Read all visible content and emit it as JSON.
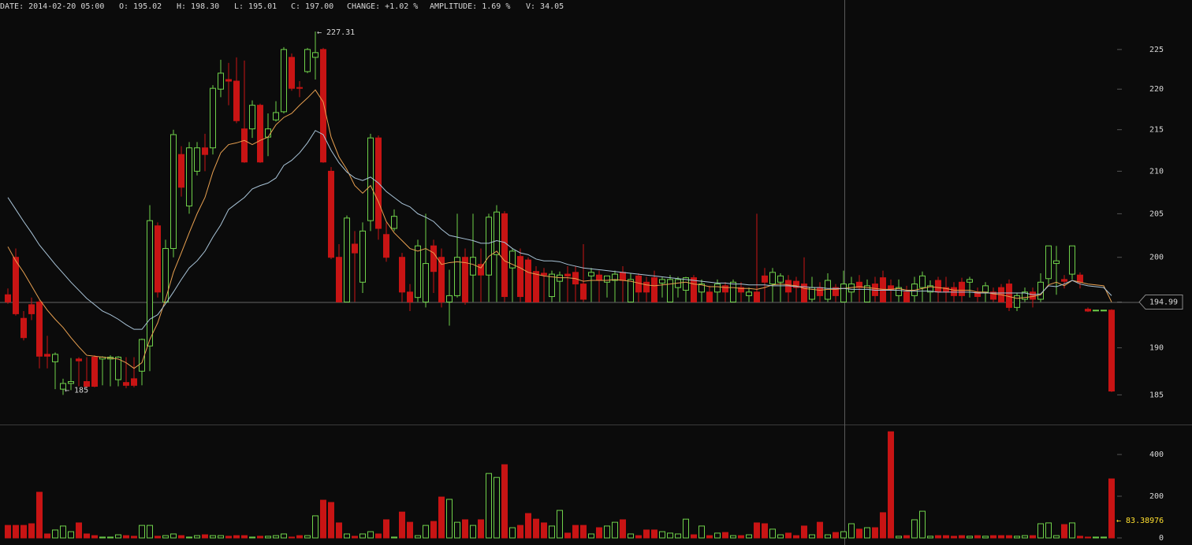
{
  "chart_data": {
    "type": "candlestick",
    "info": [
      "DATE: 2014-02-20 05:00",
      "O: 195.02",
      "H: 198.30",
      "L: 195.01",
      "C: 197.00",
      "CHANGE: +1.02 %",
      "AMPLITUDE: 1.69 %",
      "V: 34.05"
    ],
    "log_scale": true,
    "ylim": [
      182,
      231.4
    ],
    "yticks": [
      185,
      190,
      195,
      200,
      205,
      210,
      215,
      220,
      225
    ],
    "volume_ylim": [
      0,
      540
    ],
    "volume_yticks": [
      0,
      200,
      400
    ],
    "up_color": "#6fd14a",
    "down_color": "#c81414",
    "crosshair_price": 194.99,
    "annotations": [
      {
        "text": "← 227.31",
        "value": 227.31,
        "at": "high"
      },
      {
        "text": "← 185",
        "value": 185,
        "at": "low"
      }
    ],
    "volume_annotation": {
      "text": "← 83.38976",
      "value": 83.38976,
      "color": "#ffe030"
    },
    "ohlc": [
      [
        195.8,
        196.5,
        194.8,
        195.0
      ],
      [
        200,
        201,
        193.5,
        193.7
      ],
      [
        193.2,
        194,
        190.8,
        191.1
      ],
      [
        194.7,
        195.5,
        193,
        193.7
      ],
      [
        195,
        195.2,
        187.8,
        189.1
      ],
      [
        189.3,
        191.3,
        187.8,
        189.1
      ],
      [
        188.5,
        189.5,
        185.6,
        189.3
      ],
      [
        185.6,
        186.7,
        185,
        186.2
      ],
      [
        186.2,
        188.9,
        185.5,
        186.4
      ],
      [
        188.8,
        189,
        185.9,
        188.6
      ],
      [
        186.4,
        189,
        185.7,
        185.9
      ],
      [
        189,
        189.2,
        185.8,
        185.9
      ],
      [
        188.8,
        189.1,
        186,
        189
      ],
      [
        188.8,
        189.2,
        185.9,
        189
      ],
      [
        186.6,
        189.1,
        185.9,
        189
      ],
      [
        186.3,
        189,
        185.7,
        186
      ],
      [
        186.7,
        189,
        185.8,
        186
      ],
      [
        187.5,
        191,
        186,
        190.9
      ],
      [
        190.2,
        206,
        187.5,
        204.2
      ],
      [
        203.6,
        204,
        195.5,
        196.1
      ],
      [
        195,
        202,
        194.8,
        201
      ],
      [
        201,
        215,
        200,
        214.4
      ],
      [
        212,
        213,
        207,
        208.1
      ],
      [
        205.9,
        213.5,
        205,
        212.8
      ],
      [
        210,
        213.5,
        209.5,
        212.8
      ],
      [
        212.8,
        214.5,
        210,
        212
      ],
      [
        212.8,
        220.5,
        212,
        220.1
      ],
      [
        220,
        223.7,
        219,
        222
      ],
      [
        221.2,
        223.3,
        218,
        221
      ],
      [
        221,
        224,
        215.8,
        216.1
      ],
      [
        215.1,
        223.6,
        211,
        211.1
      ],
      [
        215.1,
        218.6,
        214,
        218
      ],
      [
        218,
        218.2,
        211,
        211.1
      ],
      [
        214.1,
        217,
        211.8,
        215.1
      ],
      [
        216.2,
        218.5,
        216,
        217.1
      ],
      [
        217.2,
        225.3,
        217,
        225
      ],
      [
        224,
        224.5,
        219.8,
        220.1
      ],
      [
        220.2,
        221,
        219,
        220.1
      ],
      [
        222.2,
        225.2,
        222,
        225
      ],
      [
        224,
        227.31,
        221.2,
        224.6
      ],
      [
        225,
        225.2,
        211,
        211.1
      ],
      [
        210,
        210.5,
        199.8,
        200
      ],
      [
        200,
        201.5,
        195,
        195
      ],
      [
        195,
        204.8,
        195,
        204.5
      ],
      [
        201.5,
        203,
        195,
        200.5
      ],
      [
        197.2,
        204,
        196,
        203
      ],
      [
        204.2,
        214.5,
        203,
        214
      ],
      [
        214,
        214.3,
        202,
        203.3
      ],
      [
        202.6,
        204,
        199.5,
        200
      ],
      [
        203.3,
        205.5,
        203,
        204.7
      ],
      [
        200,
        200.5,
        195,
        196.1
      ],
      [
        196.1,
        197,
        194,
        195
      ],
      [
        195.5,
        202,
        195,
        201.3
      ],
      [
        195,
        205,
        194.4,
        199.3
      ],
      [
        201.3,
        202,
        196,
        198.4
      ],
      [
        200,
        201,
        194.4,
        195
      ],
      [
        195,
        198.6,
        192.4,
        195.7
      ],
      [
        195.7,
        205,
        195.5,
        200
      ],
      [
        200,
        201,
        194.7,
        195
      ],
      [
        198,
        205,
        195,
        200
      ],
      [
        199.2,
        201,
        195,
        198
      ],
      [
        198,
        205,
        195,
        204.6
      ],
      [
        200.3,
        206,
        195,
        205.2
      ],
      [
        205,
        205.3,
        195,
        195.6
      ],
      [
        198.8,
        201,
        195,
        200.7
      ],
      [
        200.1,
        201,
        195,
        195.6
      ],
      [
        199.7,
        200,
        195,
        195
      ],
      [
        198.4,
        199,
        195,
        195
      ],
      [
        198.2,
        198.8,
        195,
        198
      ],
      [
        195.6,
        198.5,
        195,
        198.1
      ],
      [
        197.3,
        198.4,
        195,
        198
      ],
      [
        198.1,
        199,
        195,
        197.9
      ],
      [
        198.3,
        199,
        195,
        197
      ],
      [
        197,
        201.5,
        195,
        195.3
      ],
      [
        197.9,
        198.8,
        195,
        198.3
      ],
      [
        198,
        198.5,
        195,
        197.4
      ],
      [
        197.2,
        197.8,
        195.5,
        197.9
      ],
      [
        197.4,
        198.5,
        195,
        198.1
      ],
      [
        198.3,
        199,
        195,
        197.4
      ],
      [
        195,
        198.2,
        195,
        197.5
      ],
      [
        197.9,
        198.2,
        195,
        196.1
      ],
      [
        197.2,
        197.8,
        195,
        196.1
      ],
      [
        197.7,
        198.5,
        195,
        195
      ],
      [
        197.1,
        197.8,
        195.5,
        197.5
      ],
      [
        195,
        198,
        195,
        197.5
      ],
      [
        196.6,
        197.8,
        195.5,
        197.5
      ],
      [
        196.3,
        197.8,
        195,
        197.7
      ],
      [
        197.7,
        198,
        195,
        195
      ],
      [
        196.1,
        197.5,
        195,
        197
      ],
      [
        196.1,
        196.8,
        195,
        195
      ],
      [
        196.1,
        197.5,
        195,
        197
      ],
      [
        196.8,
        197.2,
        195,
        196.1
      ],
      [
        195,
        197.5,
        195,
        197.2
      ],
      [
        196.6,
        197.2,
        195,
        196.1
      ],
      [
        195.7,
        196.6,
        195,
        196.1
      ],
      [
        196.1,
        205,
        195,
        195
      ],
      [
        197.9,
        198.8,
        195,
        197.2
      ],
      [
        197,
        198.8,
        195,
        198.3
      ],
      [
        197.2,
        198.2,
        195,
        197.9
      ],
      [
        197.4,
        198,
        195,
        196.1
      ],
      [
        197.3,
        197.8,
        195,
        196.6
      ],
      [
        197,
        200,
        195,
        195
      ],
      [
        195.3,
        197.8,
        195,
        196.6
      ],
      [
        196.6,
        197.2,
        195,
        195.7
      ],
      [
        195.3,
        198.2,
        195,
        197.4
      ],
      [
        196.6,
        197,
        195,
        195.7
      ],
      [
        195,
        198.5,
        195,
        197
      ],
      [
        196.1,
        197.8,
        195,
        197
      ],
      [
        197.2,
        198,
        195,
        196.6
      ],
      [
        195,
        197.5,
        195,
        196.8
      ],
      [
        197,
        197.8,
        195,
        195.7
      ],
      [
        197.7,
        198.5,
        195,
        195
      ],
      [
        196.8,
        197.5,
        195,
        196.4
      ],
      [
        195.7,
        197.5,
        195,
        196.6
      ],
      [
        196.1,
        196.8,
        195,
        195
      ],
      [
        195.7,
        197.8,
        195,
        197
      ],
      [
        196.6,
        198.4,
        195,
        197.9
      ],
      [
        196.1,
        197.4,
        195,
        196.8
      ],
      [
        197.4,
        197.8,
        195,
        196.1
      ],
      [
        196.6,
        197.8,
        195,
        196.1
      ],
      [
        196.6,
        197.2,
        195,
        195.7
      ],
      [
        197.2,
        197.7,
        195,
        195.7
      ],
      [
        197.2,
        197.8,
        195.5,
        197.5
      ],
      [
        196.1,
        196.6,
        195,
        195.6
      ],
      [
        196.1,
        197.2,
        195,
        196.8
      ],
      [
        196.1,
        196.6,
        195,
        195.3
      ],
      [
        196.6,
        197,
        195,
        195
      ],
      [
        197,
        197.5,
        194,
        194.4
      ],
      [
        194.4,
        196,
        194,
        195.7
      ],
      [
        195.3,
        196.6,
        195,
        196.1
      ],
      [
        196.1,
        196.6,
        194.4,
        195.3
      ],
      [
        195.3,
        198.2,
        195,
        197.2
      ],
      [
        197.6,
        201.3,
        197,
        201.3
      ],
      [
        199.3,
        201.3,
        195.8,
        199.6
      ],
      [
        197.5,
        198,
        196.5,
        197.3
      ],
      [
        198.1,
        201.3,
        197.5,
        201.3
      ],
      [
        198,
        198.3,
        196.5,
        197.2
      ],
      [
        194.2,
        194.4,
        193.9,
        194
      ],
      [
        194.1,
        194.1,
        194.1,
        194.1
      ],
      [
        194.1,
        194.1,
        194.1,
        194.1
      ],
      [
        194.1,
        194.2,
        185.3,
        185.4
      ]
    ],
    "volume": [
      60,
      60,
      60,
      68,
      219,
      19,
      38,
      57,
      30,
      72,
      19,
      11,
      4,
      4,
      15,
      11,
      8,
      60,
      60,
      8,
      11,
      19,
      11,
      4,
      11,
      15,
      11,
      11,
      8,
      11,
      11,
      4,
      8,
      8,
      11,
      19,
      4,
      11,
      11,
      106,
      181,
      170,
      72,
      19,
      8,
      19,
      30,
      19,
      87,
      4,
      124,
      75,
      11,
      60,
      79,
      196,
      185,
      75,
      87,
      60,
      87,
      309,
      290,
      351,
      49,
      60,
      117,
      90,
      72,
      57,
      132,
      23,
      60,
      60,
      19,
      49,
      57,
      75,
      87,
      19,
      11,
      38,
      38,
      30,
      23,
      19,
      90,
      15,
      57,
      11,
      23,
      26,
      11,
      11,
      15,
      72,
      68,
      42,
      15,
      23,
      11,
      57,
      15,
      75,
      15,
      26,
      30,
      68,
      42,
      49,
      49,
      121,
      509,
      8,
      11,
      87,
      128,
      8,
      11,
      11,
      8,
      11,
      8,
      11,
      8,
      11,
      11,
      11,
      8,
      11,
      11,
      68,
      72,
      11,
      64,
      72,
      8,
      4,
      4,
      4,
      283
    ],
    "ma": [
      {
        "color": "#e8a050",
        "values": [
          201.2,
          199.6,
          198.3,
          196.8,
          195.3,
          194.1,
          193.1,
          192.2,
          191.1,
          190.1,
          189.2,
          189.1,
          189.0,
          188.9,
          188.8,
          188.4,
          187.8,
          188.4,
          190.9,
          192.7,
          195.3,
          198.3,
          200.5,
          202.8,
          205,
          206.9,
          209.9,
          212.2,
          213.2,
          213.4,
          213.7,
          213.2,
          213.7,
          214.1,
          215.6,
          216.5,
          217,
          218,
          218.9,
          219.9,
          218.4,
          214.1,
          211.7,
          210.2,
          208.3,
          207.4,
          208.3,
          206.4,
          204.1,
          202.8,
          201.9,
          201,
          200.7,
          201,
          200.5,
          199.2,
          199.4,
          199.5,
          199.4,
          199.2,
          198.8,
          200.1,
          200.7,
          199.6,
          199.2,
          198.8,
          198.3,
          198.1,
          197.9,
          197.8,
          197.7,
          197.7,
          197.6,
          197.3,
          197.4,
          197.4,
          197.4,
          197.5,
          197.4,
          197.3,
          197.1,
          196.9,
          196.8,
          196.9,
          197.0,
          197.1,
          197.2,
          197.0,
          196.9,
          196.7,
          196.7,
          196.6,
          196.6,
          196.5,
          196.5,
          196.4,
          196.6,
          196.9,
          197.0,
          196.9,
          196.8,
          196.5,
          196.4,
          196.3,
          196.4,
          196.4,
          196.5,
          196.6,
          196.7,
          196.6,
          196.5,
          196.4,
          196.4,
          196.5,
          196.3,
          196.3,
          196.5,
          196.7,
          196.6,
          196.5,
          196.3,
          196.3,
          196.3,
          196.1,
          196.1,
          195.9,
          195.8,
          195.6,
          195.4,
          195.5,
          195.6,
          195.8,
          196.9,
          197.2,
          196.8,
          197.4,
          197.2,
          197.0,
          196.9,
          196.8,
          195.0
        ]
      },
      {
        "color": "#a9c4d8",
        "values": [
          206.9,
          205.5,
          204.1,
          202.8,
          201.4,
          200.3,
          199.2,
          198.2,
          197.2,
          196.3,
          195.4,
          194.7,
          194.0,
          193.6,
          193.1,
          192.5,
          192.0,
          192.0,
          193.1,
          193.6,
          194.8,
          196.1,
          197.5,
          198.8,
          199.6,
          200.7,
          202.3,
          203.7,
          205.5,
          206.2,
          206.9,
          207.9,
          208.3,
          208.6,
          209.2,
          210.7,
          211.3,
          212.2,
          213.4,
          214.9,
          214.4,
          212.5,
          211.0,
          209.9,
          209.2,
          208.9,
          209.3,
          208.6,
          207.6,
          206.9,
          206.2,
          205.8,
          205,
          204.6,
          204.1,
          203.2,
          202.5,
          202.3,
          202.1,
          201.9,
          201.6,
          201.6,
          201.9,
          201.7,
          201.0,
          200.5,
          200.3,
          199.8,
          199.6,
          199.6,
          199.5,
          199.2,
          199.0,
          198.8,
          198.7,
          198.6,
          198.5,
          198.4,
          198.3,
          198.2,
          198.1,
          198.0,
          197.9,
          197.8,
          197.7,
          197.6,
          197.5,
          197.4,
          197.3,
          197.2,
          197.1,
          197.1,
          197.0,
          197.0,
          196.9,
          196.9,
          196.9,
          196.8,
          196.8,
          196.8,
          196.7,
          196.7,
          196.6,
          196.6,
          196.5,
          196.5,
          196.5,
          196.4,
          196.4,
          196.4,
          196.3,
          196.3,
          196.3,
          196.3,
          196.2,
          196.2,
          196.2,
          196.2,
          196.1,
          196.1,
          196.1,
          196.1,
          196.1,
          196.0,
          196.0,
          196.0,
          196.0,
          196.0,
          196.0,
          196.0,
          195.8,
          195.9,
          196.8,
          196.7,
          197.0,
          197.4,
          197.0,
          196.8,
          196.7,
          196.6,
          195.7
        ]
      }
    ]
  }
}
